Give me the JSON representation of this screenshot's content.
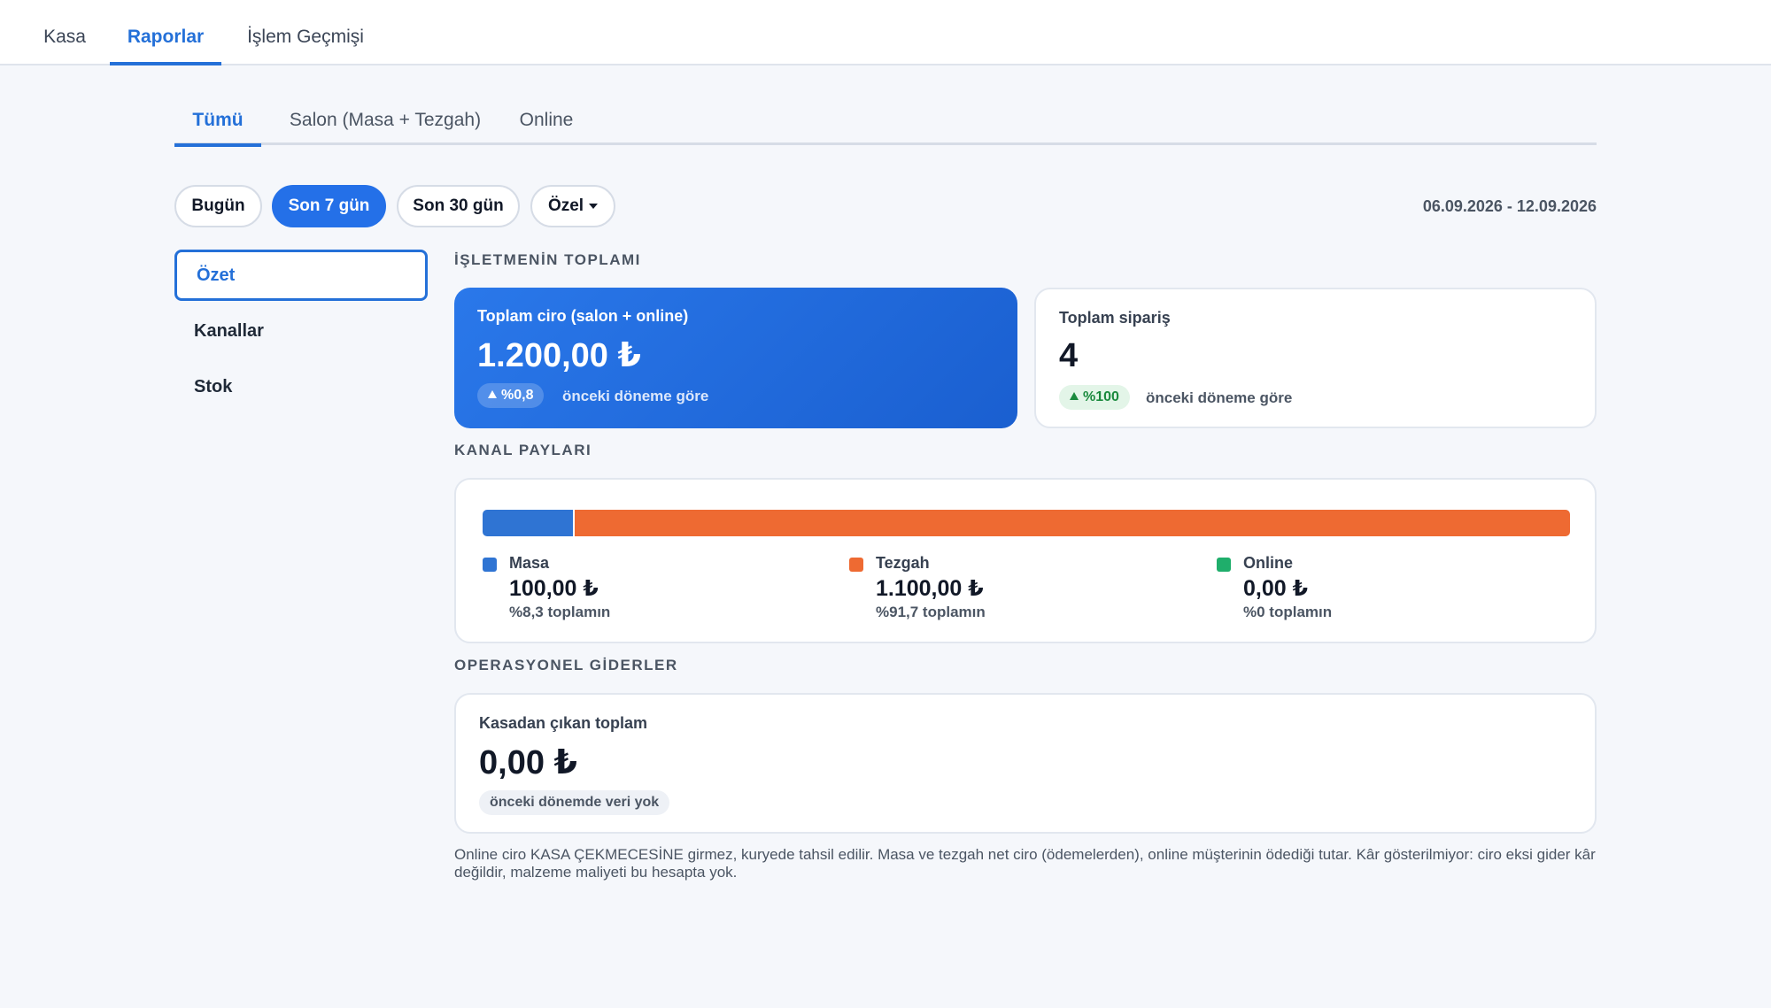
{
  "top_tabs": [
    {
      "label": "Kasa"
    },
    {
      "label": "Raporlar"
    },
    {
      "label": "İşlem Geçmişi"
    }
  ],
  "sub_tabs": [
    {
      "label": "Tümü"
    },
    {
      "label": "Salon (Masa + Tezgah)"
    },
    {
      "label": "Online"
    }
  ],
  "periods": {
    "today": "Bugün",
    "last7": "Son 7 gün",
    "last30": "Son 30 gün",
    "custom": "Özel"
  },
  "date_range": "06.09.2026 - 12.09.2026",
  "side_menu": [
    {
      "label": "Özet"
    },
    {
      "label": "Kanallar"
    },
    {
      "label": "Stok"
    }
  ],
  "business_total": {
    "title": "İŞLETMENİN TOPLAMI",
    "revenue": {
      "label": "Toplam ciro (salon + online)",
      "value": "1.200,00 ₺",
      "change": "%0,8",
      "note": "önceki döneme göre"
    },
    "orders": {
      "label": "Toplam sipariş",
      "value": "4",
      "change": "%100",
      "note": "önceki döneme göre"
    }
  },
  "channel_shares": {
    "title": "KANAL PAYLARI",
    "channels": [
      {
        "name": "Masa",
        "amount": "100,00 ₺",
        "pct_text": "%8,3 toplamın",
        "share": 8.3,
        "color": "#2f74d3"
      },
      {
        "name": "Tezgah",
        "amount": "1.100,00 ₺",
        "pct_text": "%91,7 toplamın",
        "share": 91.7,
        "color": "#ee6a32"
      },
      {
        "name": "Online",
        "amount": "0,00 ₺",
        "pct_text": "%0 toplamın",
        "share": 0,
        "color": "#1fae6b"
      }
    ]
  },
  "operational_expenses": {
    "title": "OPERASYONEL GİDERLER",
    "label": "Kasadan çıkan toplam",
    "value": "0,00 ₺",
    "note": "önceki dönemde veri yok"
  },
  "footnote": "Online ciro KASA ÇEKMECESİNE girmez, kuryede tahsil edilir. Masa ve tezgah net ciro (ödemelerden), online müşterinin ödediği tutar. Kâr gösterilmiyor: ciro eksi gider kâr değildir, malzeme maliyeti bu hesapta yok."
}
